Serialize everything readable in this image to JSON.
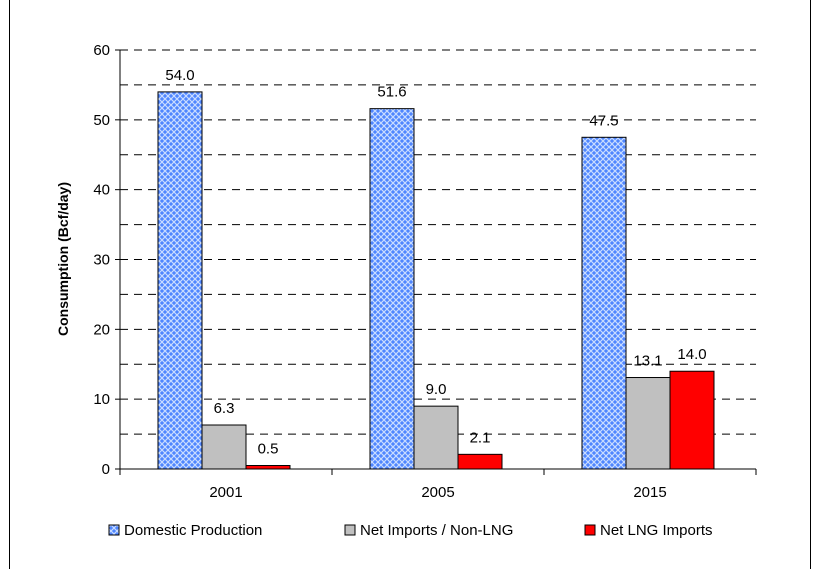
{
  "chart_data": {
    "type": "bar",
    "title": "",
    "xlabel": "",
    "ylabel": "Consumption (Bcf/day)",
    "ylim": [
      0,
      60
    ],
    "yticks": [
      0,
      10,
      20,
      30,
      40,
      50,
      60
    ],
    "grid": "dashed horizontal every 5",
    "legend_position": "bottom",
    "categories": [
      "2001",
      "2005",
      "2015"
    ],
    "series": [
      {
        "name": "Domestic Production",
        "values": [
          54.0,
          51.6,
          47.5
        ],
        "labels": [
          "54.0",
          "51.6",
          "47.5"
        ],
        "color": "#3a6ff0",
        "pattern": "crosshatch"
      },
      {
        "name": "Net Imports / Non-LNG",
        "values": [
          6.3,
          9.0,
          13.1
        ],
        "labels": [
          "6.3",
          "9.0",
          "13.1"
        ],
        "color": "#c0c0c0",
        "pattern": "solid"
      },
      {
        "name": "Net LNG Imports",
        "values": [
          0.5,
          2.1,
          14.0
        ],
        "labels": [
          "0.5",
          "2.1",
          "14.0"
        ],
        "color": "#ff0000",
        "pattern": "solid"
      }
    ]
  }
}
